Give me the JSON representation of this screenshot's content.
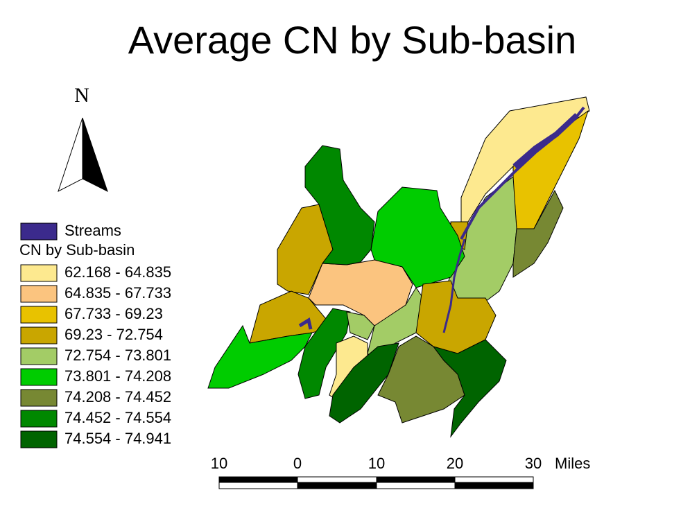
{
  "title": "Average CN by Sub-basin",
  "north": "N",
  "legend": {
    "streams": {
      "label": "Streams",
      "color": "#3b2a8c"
    },
    "heading": "CN by Sub-basin",
    "classes": [
      {
        "label": "62.168 - 64.835",
        "color": "#fde98f"
      },
      {
        "label": "64.835 - 67.733",
        "color": "#fbc47f"
      },
      {
        "label": "67.733 - 69.23",
        "color": "#e8c200"
      },
      {
        "label": "69.23 - 72.754",
        "color": "#c9a600"
      },
      {
        "label": "72.754 - 73.801",
        "color": "#a3cc66"
      },
      {
        "label": "73.801 - 74.208",
        "color": "#00cc00"
      },
      {
        "label": "74.208 - 74.452",
        "color": "#778833"
      },
      {
        "label": "74.452 - 74.554",
        "color": "#008800"
      },
      {
        "label": "74.554 - 74.941",
        "color": "#006400"
      }
    ]
  },
  "scale": {
    "labels": [
      "10",
      "0",
      "10",
      "20",
      "30"
    ],
    "unit": "Miles"
  }
}
